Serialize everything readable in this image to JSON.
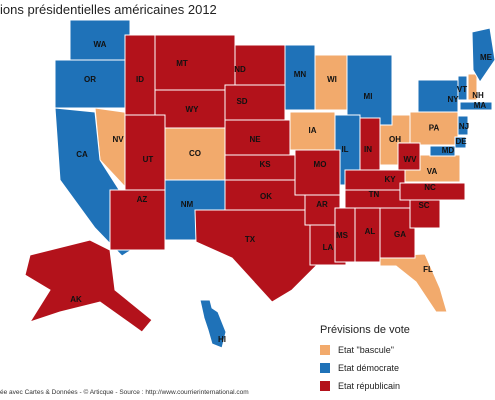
{
  "title": "ions présidentielles américaines 2012",
  "legend": {
    "title": "Prévisions de vote",
    "items": [
      {
        "label": "Etat \"bascule\"",
        "color": "#f2aa6c",
        "states": [
          "NV",
          "CO",
          "WI",
          "IA",
          "OH",
          "PA",
          "VA",
          "FL",
          "NH"
        ]
      },
      {
        "label": "Etat démocrate",
        "color": "#1f72b8",
        "states": [
          "WA",
          "OR",
          "CA",
          "NM",
          "MN",
          "MI",
          "IL",
          "NY",
          "VT",
          "MA",
          "NJ",
          "DE",
          "MD",
          "ME",
          "HI"
        ]
      },
      {
        "label": "Etat républicain",
        "color": "#b3121b",
        "states": [
          "MT",
          "ID",
          "WY",
          "UT",
          "AZ",
          "ND",
          "SD",
          "NE",
          "KS",
          "OK",
          "TX",
          "MO",
          "AR",
          "LA",
          "IN",
          "KY",
          "TN",
          "MS",
          "AL",
          "GA",
          "SC",
          "NC",
          "WV",
          "AK"
        ]
      }
    ]
  },
  "footer": "ée avec Cartes & Données - © Articque - Source : http://www.courrierinternational.com"
}
